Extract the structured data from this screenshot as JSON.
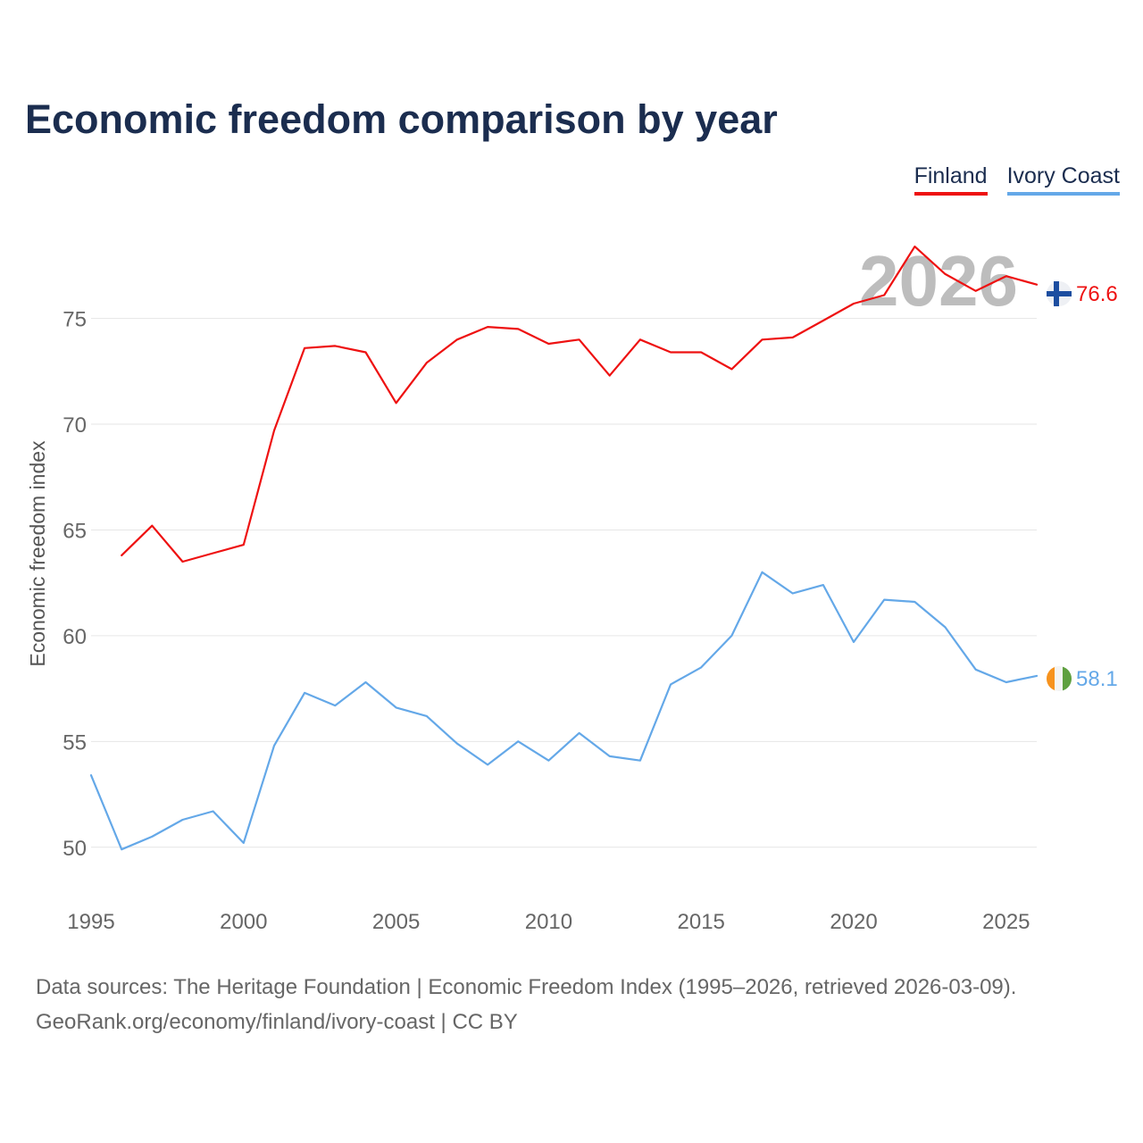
{
  "title": "Economic freedom comparison by year",
  "legend": [
    {
      "label": "Finland",
      "color": "#ee1111"
    },
    {
      "label": "Ivory Coast",
      "color": "#64a8e8"
    }
  ],
  "year_watermark": "2026",
  "footer": {
    "line1": "Data sources: The Heritage Foundation | Economic Freedom Index (1995–2026, retrieved 2026-03-09).",
    "line2": "GeoRank.org/economy/finland/ivory-coast | CC BY"
  },
  "chart_data": {
    "type": "line",
    "title": "Economic freedom comparison by year",
    "xlabel": "",
    "ylabel": "Economic freedom index",
    "xlim": [
      1995,
      2026
    ],
    "ylim": [
      47.5,
      79.5
    ],
    "yticks": [
      50,
      55,
      60,
      65,
      70,
      75
    ],
    "xticks": [
      1995,
      2000,
      2005,
      2010,
      2015,
      2020,
      2025
    ],
    "grid": true,
    "legend_position": "top-right",
    "series": [
      {
        "name": "Finland",
        "color": "#ee1111",
        "end_label": "76.6",
        "x": [
          1996,
          1997,
          1998,
          1999,
          2000,
          2001,
          2002,
          2003,
          2004,
          2005,
          2006,
          2007,
          2008,
          2009,
          2010,
          2011,
          2012,
          2013,
          2014,
          2015,
          2016,
          2017,
          2018,
          2019,
          2020,
          2021,
          2022,
          2023,
          2024,
          2025,
          2026
        ],
        "values": [
          63.8,
          65.2,
          63.5,
          63.9,
          64.3,
          69.7,
          73.6,
          73.7,
          73.4,
          71.0,
          72.9,
          74.0,
          74.6,
          74.5,
          73.8,
          74.0,
          72.3,
          74.0,
          73.4,
          73.4,
          72.6,
          74.0,
          74.1,
          74.9,
          75.7,
          76.1,
          78.4,
          77.1,
          76.3,
          77.0,
          76.6
        ]
      },
      {
        "name": "Ivory Coast",
        "color": "#64a8e8",
        "end_label": "58.1",
        "x": [
          1995,
          1996,
          1997,
          1998,
          1999,
          2000,
          2001,
          2002,
          2003,
          2004,
          2005,
          2006,
          2007,
          2008,
          2009,
          2010,
          2011,
          2012,
          2013,
          2014,
          2015,
          2016,
          2017,
          2018,
          2019,
          2020,
          2021,
          2022,
          2023,
          2024,
          2025,
          2026
        ],
        "values": [
          53.4,
          49.9,
          50.5,
          51.3,
          51.7,
          50.2,
          54.8,
          57.3,
          56.7,
          57.8,
          56.6,
          56.2,
          54.9,
          53.9,
          55.0,
          54.1,
          55.4,
          54.3,
          54.1,
          57.7,
          58.5,
          60.0,
          63.0,
          62.0,
          62.4,
          59.7,
          61.7,
          61.6,
          60.4,
          58.4,
          57.8,
          58.1
        ]
      }
    ]
  }
}
